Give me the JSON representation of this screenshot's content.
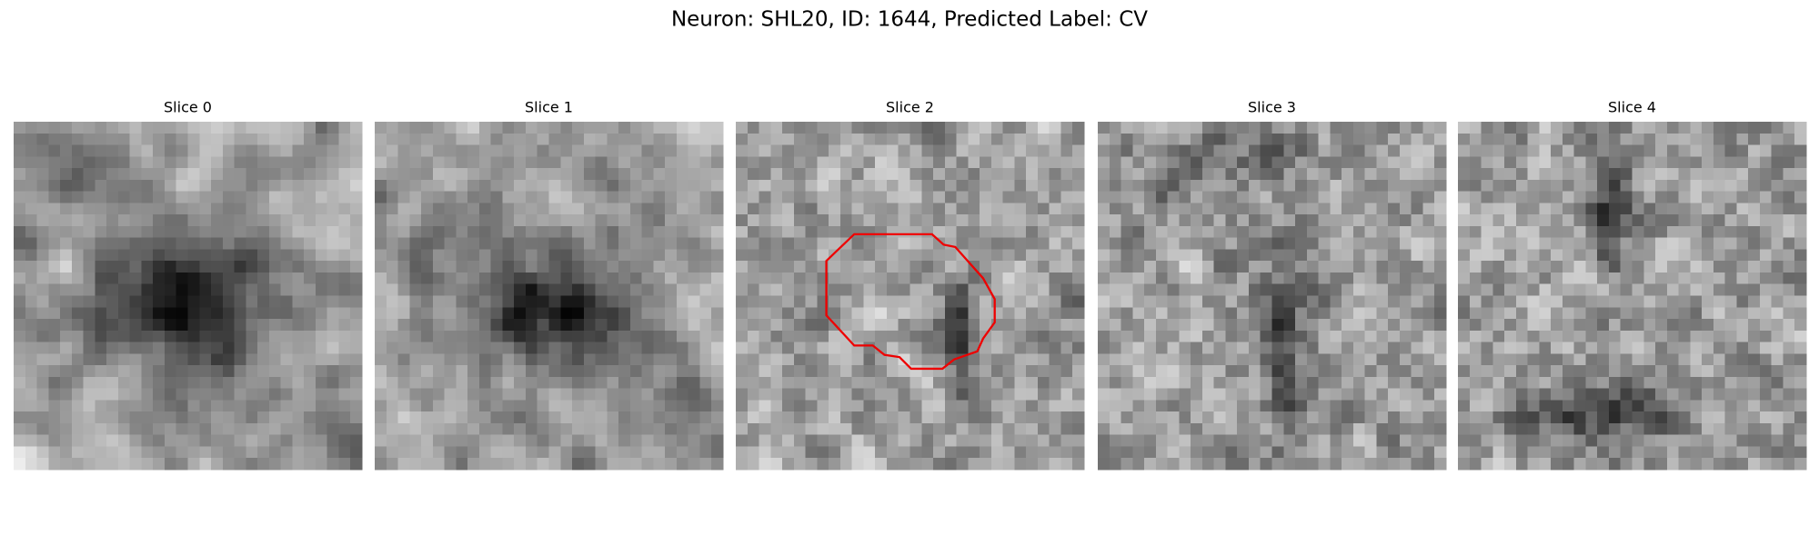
{
  "header": {
    "title": "Neuron: SHL20, ID: 1644, Predicted Label: CV"
  },
  "panels": [
    {
      "title": "Slice 0"
    },
    {
      "title": "Slice 1"
    },
    {
      "title": "Slice 2"
    },
    {
      "title": "Slice 3"
    },
    {
      "title": "Slice 4"
    }
  ]
}
